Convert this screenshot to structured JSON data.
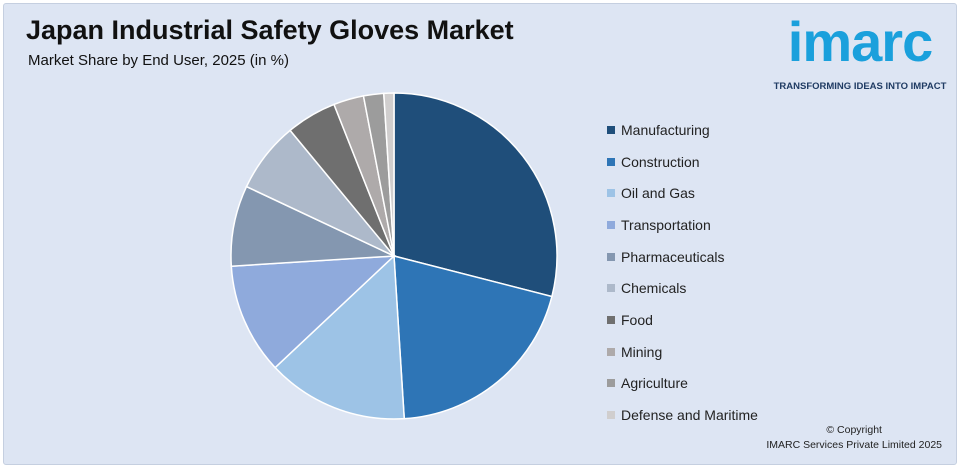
{
  "header": {
    "title": "Japan Industrial Safety Gloves Market",
    "subtitle": "Market Share by End User, 2025 (in %)"
  },
  "logo": {
    "wordmark": "imarc",
    "tagline": "TRANSFORMING IDEAS INTO IMPACT",
    "color": "#1aa0dc"
  },
  "chart_data": {
    "type": "pie",
    "title": "Japan Industrial Safety Gloves Market",
    "subtitle": "Market Share by End User, 2025 (in %)",
    "legend_position": "right",
    "slices": [
      {
        "label": "Manufacturing",
        "value": 29,
        "color": "#1f4e7a"
      },
      {
        "label": "Construction",
        "value": 20,
        "color": "#2e75b6"
      },
      {
        "label": "Oil and Gas",
        "value": 14,
        "color": "#9dc3e6"
      },
      {
        "label": "Transportation",
        "value": 11,
        "color": "#8faadc"
      },
      {
        "label": "Pharmaceuticals",
        "value": 8,
        "color": "#8497b0"
      },
      {
        "label": "Chemicals",
        "value": 7,
        "color": "#adb9ca"
      },
      {
        "label": "Food",
        "value": 5,
        "color": "#6f6f6f"
      },
      {
        "label": "Mining",
        "value": 3,
        "color": "#aeaaaa"
      },
      {
        "label": "Agriculture",
        "value": 2,
        "color": "#9c9c9c"
      },
      {
        "label": "Defense and Maritime",
        "value": 1,
        "color": "#d0cece"
      }
    ]
  },
  "footer": {
    "copyright_line1": "© Copyright",
    "copyright_line2": "IMARC Services Private Limited 2025"
  }
}
